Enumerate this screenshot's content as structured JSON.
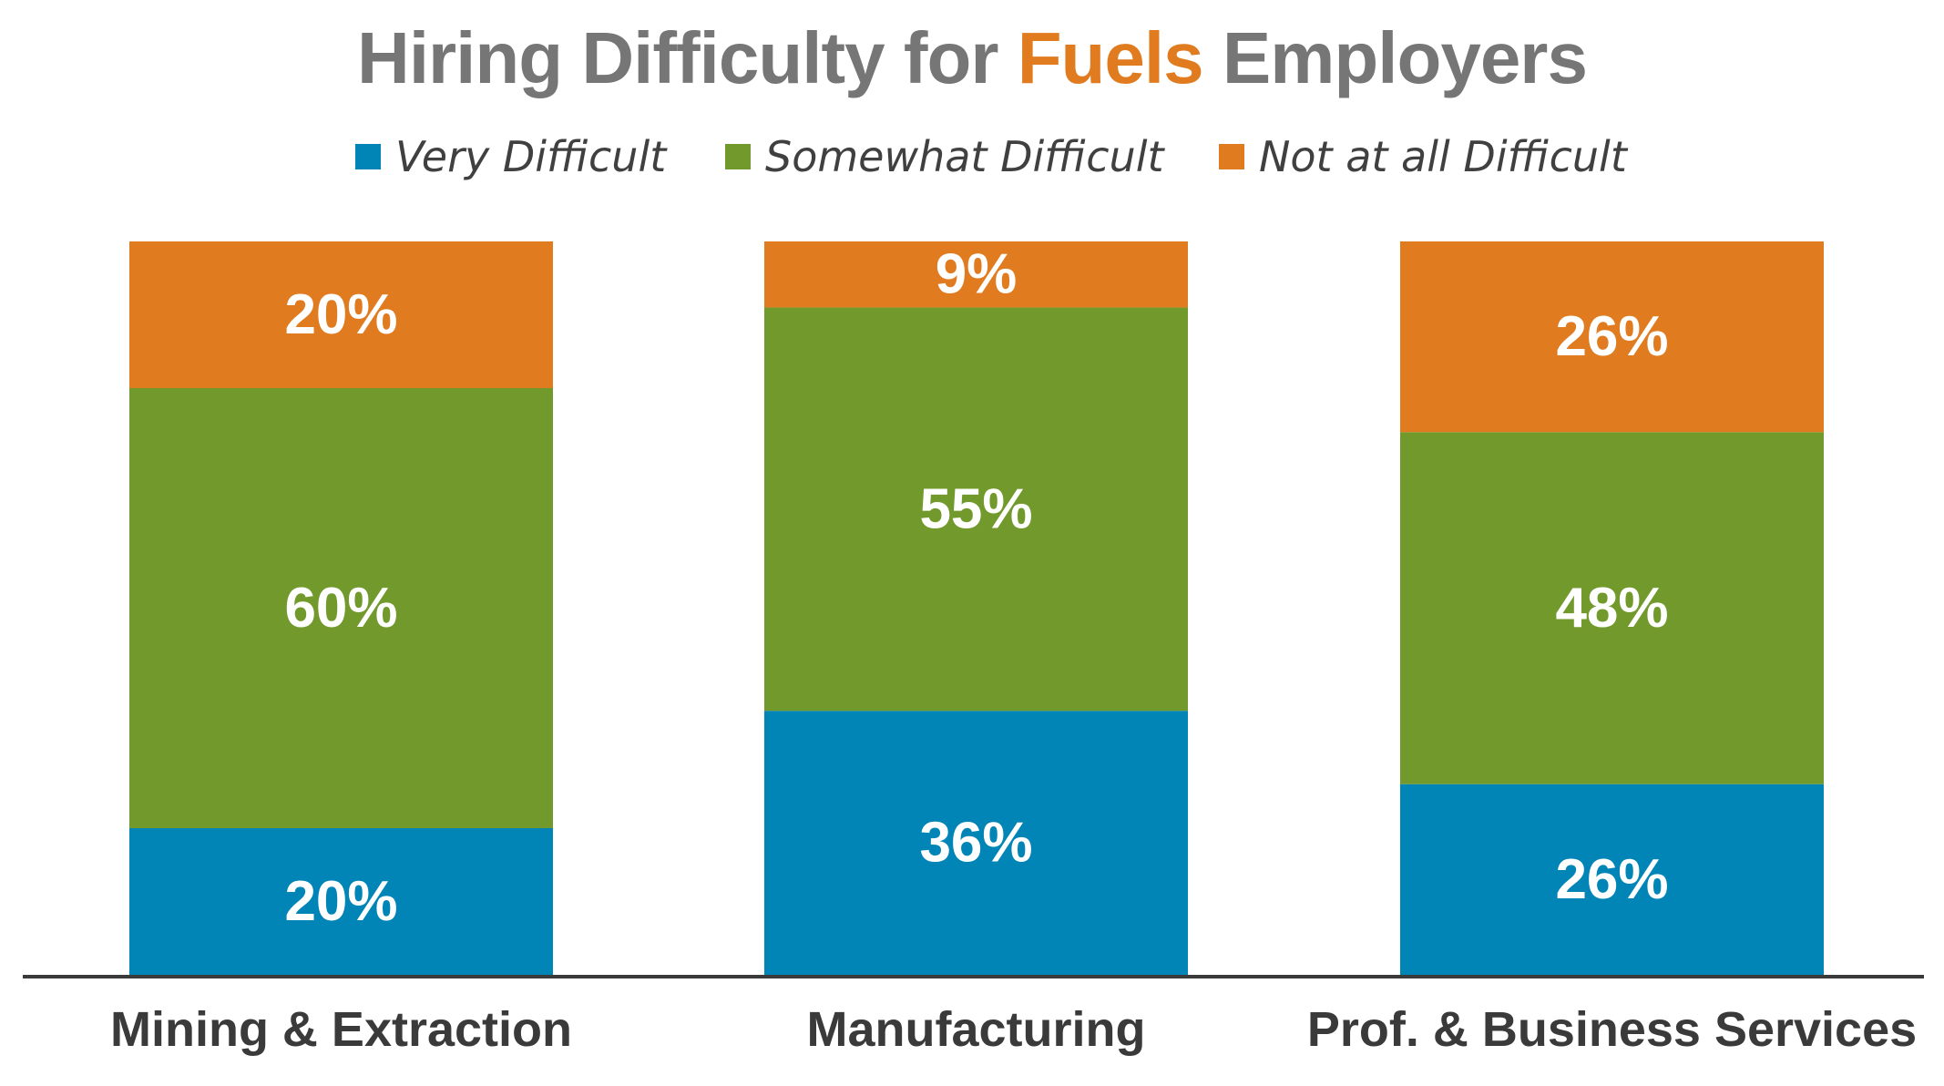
{
  "chart_data": {
    "type": "bar",
    "stacked": true,
    "title_parts": {
      "before": "Hiring Difficulty for ",
      "highlight": "Fuels",
      "after": " Employers"
    },
    "categories": [
      "Mining & Extraction",
      "Manufacturing",
      "Prof. & Business Services"
    ],
    "series": [
      {
        "name": "Very Difficult",
        "color": "#0085b6",
        "values": [
          20,
          36,
          26
        ],
        "labels": [
          "20%",
          "36%",
          "26%"
        ]
      },
      {
        "name": "Somewhat Difficult",
        "color": "#72992c",
        "values": [
          60,
          55,
          48
        ],
        "labels": [
          "60%",
          "55%",
          "48%"
        ]
      },
      {
        "name": "Not at all Difficult",
        "color": "#e07b1f",
        "values": [
          20,
          9,
          26
        ],
        "labels": [
          "20%",
          "9%",
          "26%"
        ]
      }
    ],
    "ylim": [
      0,
      100
    ],
    "grid": false,
    "legend_position": "top",
    "xlabel": "",
    "ylabel": ""
  }
}
